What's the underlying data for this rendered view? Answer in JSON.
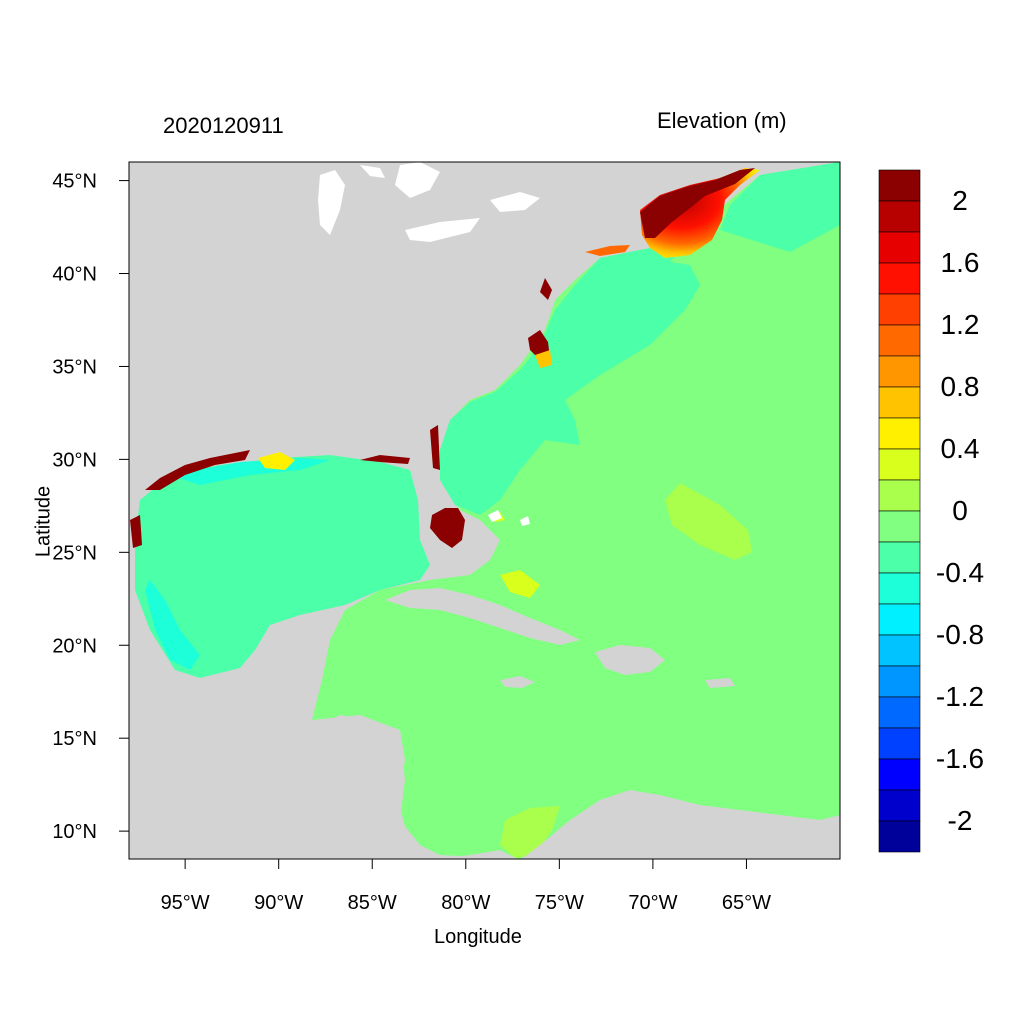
{
  "header": {
    "left_title": "2020120911",
    "right_title": "Elevation (m)"
  },
  "axes": {
    "xlabel": "Longitude",
    "ylabel": "Latitude",
    "x_ticks": [
      {
        "value": -95,
        "label": "95°W"
      },
      {
        "value": -90,
        "label": "90°W"
      },
      {
        "value": -85,
        "label": "85°W"
      },
      {
        "value": -80,
        "label": "80°W"
      },
      {
        "value": -75,
        "label": "75°W"
      },
      {
        "value": -70,
        "label": "70°W"
      },
      {
        "value": -65,
        "label": "65°W"
      }
    ],
    "y_ticks": [
      {
        "value": 45,
        "label": "45°N"
      },
      {
        "value": 40,
        "label": "40°N"
      },
      {
        "value": 35,
        "label": "35°N"
      },
      {
        "value": 30,
        "label": "30°N"
      },
      {
        "value": 25,
        "label": "25°N"
      },
      {
        "value": 20,
        "label": "20°N"
      },
      {
        "value": 15,
        "label": "15°N"
      },
      {
        "value": 10,
        "label": "10°N"
      }
    ],
    "lon_range": [
      -98,
      -60
    ],
    "lat_range": [
      8.5,
      46
    ]
  },
  "legend": {
    "position": "right",
    "colors": [
      "#00009b",
      "#0000cd",
      "#0000ff",
      "#0040ff",
      "#0069ff",
      "#0096ff",
      "#00c3ff",
      "#00f0ff",
      "#1cffd9",
      "#4cffa9",
      "#80ff80",
      "#a9ff4c",
      "#d9ff1c",
      "#fff000",
      "#ffc300",
      "#ff9600",
      "#ff6900",
      "#ff4000",
      "#ff1000",
      "#e60000",
      "#b70000",
      "#8b0000"
    ],
    "labels": [
      "2",
      "1.6",
      "1.2",
      "0.8",
      "0.4",
      "0",
      "-0.4",
      "-0.8",
      "-1.2",
      "-1.6",
      "-2"
    ]
  },
  "colors": {
    "land": "#d3d3d3",
    "ocean_neutral": "#80ff80",
    "gulf": "#4cffa9",
    "surge_high": "#8b0000"
  }
}
